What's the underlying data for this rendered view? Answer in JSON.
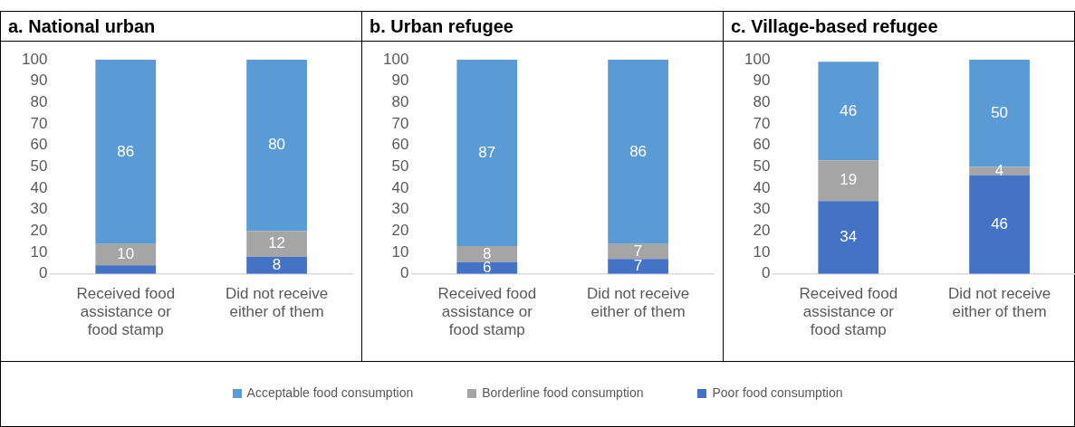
{
  "chart_data": [
    {
      "type": "bar",
      "title": "a. National urban",
      "stacked": true,
      "categories": [
        "Received food assistance or food stamp",
        "Did not receive either of them"
      ],
      "ylim": [
        0,
        100
      ],
      "yticks": [
        0,
        10,
        20,
        30,
        40,
        50,
        60,
        70,
        80,
        90,
        100
      ],
      "legend": "bottom",
      "series": [
        {
          "name": "Poor food consumption",
          "color": "#4472c4",
          "values": [
            4,
            8
          ],
          "value_labels": [
            null,
            "8"
          ]
        },
        {
          "name": "Borderline food consumption",
          "color": "#a5a5a5",
          "values": [
            10,
            12
          ],
          "value_labels": [
            "10",
            "12"
          ]
        },
        {
          "name": "Acceptable food consumption",
          "color": "#5b9bd5",
          "values": [
            86,
            80
          ],
          "value_labels": [
            "86",
            "80"
          ]
        }
      ]
    },
    {
      "type": "bar",
      "title": "b. Urban refugee",
      "stacked": true,
      "categories": [
        "Received food assistance or food stamp",
        "Did not receive either of them"
      ],
      "ylim": [
        0,
        100
      ],
      "yticks": [
        0,
        10,
        20,
        30,
        40,
        50,
        60,
        70,
        80,
        90,
        100
      ],
      "series": [
        {
          "color": "#4472c4",
          "values": [
            5.5,
            7
          ],
          "value_labels": [
            "6",
            "7"
          ]
        },
        {
          "color": "#a5a5a5",
          "values": [
            7.5,
            7
          ],
          "value_labels": [
            "8",
            "7"
          ]
        },
        {
          "color": "#5b9bd5",
          "values": [
            87,
            86
          ],
          "value_labels": [
            "87",
            "86"
          ]
        }
      ]
    },
    {
      "type": "bar",
      "title": "c. Village-based refugee",
      "stacked": true,
      "categories": [
        "Received food assistance or food stamp",
        "Did not receive either of them"
      ],
      "ylim": [
        0,
        100
      ],
      "yticks": [
        0,
        10,
        20,
        30,
        40,
        50,
        60,
        70,
        80,
        90,
        100
      ],
      "series": [
        {
          "color": "#4472c4",
          "values": [
            34,
            46
          ],
          "value_labels": [
            "34",
            "46"
          ]
        },
        {
          "color": "#a5a5a5",
          "values": [
            19,
            4
          ],
          "value_labels": [
            "19",
            "4"
          ]
        },
        {
          "color": "#5b9bd5",
          "values": [
            46,
            50
          ],
          "value_labels": [
            "46",
            "50"
          ]
        }
      ]
    }
  ]
}
